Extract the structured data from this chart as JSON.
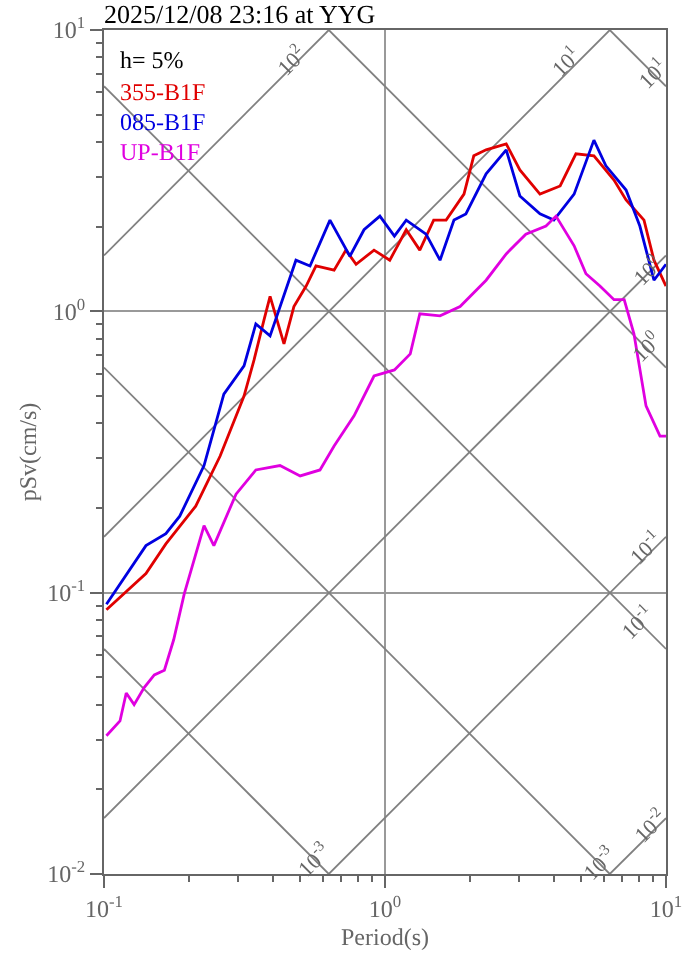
{
  "chart_data": {
    "type": "line",
    "title": "2025/12/08 23:16 at YYG",
    "xlabel": "Period(s)",
    "ylabel": "pSv(cm/s)",
    "log": "xy",
    "grid": true,
    "legend": "top left",
    "xlim": [
      0.1,
      10
    ],
    "ylim": [
      0.01,
      10
    ],
    "xticks": [
      {
        "value": 0.1,
        "label": "10$^{-1}$"
      },
      {
        "value": 1,
        "label": "10$^{0}$"
      },
      {
        "value": 10,
        "label": "10$^{1}$"
      }
    ],
    "yticks": [
      {
        "value": 0.01,
        "label": "10$^{-2}$"
      },
      {
        "value": 0.1,
        "label": "10$^{-1}$"
      },
      {
        "value": 1,
        "label": "10$^{0}$"
      },
      {
        "value": 10,
        "label": "10$^{1}$"
      }
    ],
    "annotations": [
      "h= 5%",
      {
        "text": "10$^{2}$",
        "x": 0.46,
        "y": 7.8
      },
      {
        "text": "10$^{1}$",
        "x": 4.4,
        "y": 7.8
      },
      {
        "text": "10$^{1}$",
        "x": 9.0,
        "y": 7.0
      },
      {
        "text": "10$^{0}$",
        "x": 8.5,
        "y": 1.4
      },
      {
        "text": "10$^{0}$",
        "x": 8.5,
        "y": 0.743
      },
      {
        "text": "10$^{-1}$",
        "x": 8.5,
        "y": 0.145
      },
      {
        "text": "10$^{-1}$",
        "x": 8.0,
        "y": 0.0788
      },
      {
        "text": "10$^{-3}$",
        "x": 0.56,
        "y": 0.0113
      },
      {
        "text": "10$^{-3}$",
        "x": 5.8,
        "y": 0.0109
      },
      {
        "text": "10$^{-2}$",
        "x": 8.8,
        "y": 0.015
      }
    ],
    "series": [
      {
        "color": "#808080",
        "x": [
          0.1,
          0.631
        ],
        "values": [
          0.0631,
          0.01
        ]
      },
      {
        "color": "#808080",
        "x": [
          0.1,
          6.31
        ],
        "values": [
          0.631,
          0.01
        ]
      },
      {
        "color": "#808080",
        "x": [
          0.1,
          10
        ],
        "values": [
          6.31,
          0.0631
        ]
      },
      {
        "color": "#808080",
        "x": [
          0.631,
          10
        ],
        "values": [
          10,
          0.631
        ]
      },
      {
        "color": "#808080",
        "x": [
          6.31,
          10
        ],
        "values": [
          10,
          6.31
        ]
      },
      {
        "color": "#808080",
        "x": [
          6.31,
          10
        ],
        "values": [
          0.01,
          0.0158
        ]
      },
      {
        "color": "#808080",
        "x": [
          0.631,
          10
        ],
        "values": [
          0.01,
          0.158
        ]
      },
      {
        "color": "#808080",
        "x": [
          0.1,
          10
        ],
        "values": [
          0.0158,
          1.58
        ]
      },
      {
        "color": "#808080",
        "x": [
          0.1,
          6.31
        ],
        "values": [
          0.158,
          10
        ]
      },
      {
        "color": "#808080",
        "x": [
          0.1,
          0.631
        ],
        "values": [
          1.58,
          10
        ]
      },
      {
        "name": "355-B1F",
        "color": "#e00000",
        "x": [
          0.102,
          0.141,
          0.166,
          0.212,
          0.259,
          0.315,
          0.342,
          0.371,
          0.39,
          0.437,
          0.474,
          0.524,
          0.568,
          0.659,
          0.726,
          0.789,
          0.914,
          1.04,
          1.19,
          1.33,
          1.49,
          1.65,
          1.91,
          2.07,
          2.29,
          2.7,
          3.02,
          3.56,
          4.2,
          4.78,
          5.54,
          6.53,
          7.21,
          8.35,
          9.06,
          10
        ],
        "values": [
          0.087,
          0.117,
          0.149,
          0.203,
          0.306,
          0.5,
          0.672,
          0.932,
          1.13,
          0.766,
          1.04,
          1.23,
          1.45,
          1.4,
          1.65,
          1.47,
          1.65,
          1.52,
          1.95,
          1.65,
          2.11,
          2.11,
          2.61,
          3.57,
          3.75,
          3.94,
          3.18,
          2.61,
          2.79,
          3.63,
          3.57,
          2.93,
          2.49,
          2.11,
          1.52,
          1.23
        ]
      },
      {
        "name": "085-B1F",
        "color": "#0000e0",
        "x": [
          0.102,
          0.141,
          0.166,
          0.186,
          0.227,
          0.267,
          0.315,
          0.347,
          0.39,
          0.482,
          0.541,
          0.637,
          0.75,
          0.842,
          0.959,
          1.08,
          1.19,
          1.4,
          1.57,
          1.76,
          1.94,
          2.29,
          2.7,
          3.02,
          3.56,
          3.99,
          4.71,
          5.54,
          6.11,
          7.21,
          8.07,
          9.06,
          10
        ],
        "values": [
          0.091,
          0.147,
          0.162,
          0.187,
          0.283,
          0.508,
          0.64,
          0.902,
          0.818,
          1.52,
          1.45,
          2.11,
          1.57,
          1.95,
          2.18,
          1.85,
          2.11,
          1.88,
          1.52,
          2.11,
          2.22,
          3.08,
          3.75,
          2.57,
          2.22,
          2.11,
          2.61,
          4.06,
          3.29,
          2.7,
          2.01,
          1.29,
          1.47
        ]
      },
      {
        "name": "UP-B1F",
        "color": "#e000e0",
        "x": [
          0.102,
          0.114,
          0.12,
          0.128,
          0.139,
          0.151,
          0.164,
          0.177,
          0.193,
          0.227,
          0.246,
          0.295,
          0.347,
          0.423,
          0.499,
          0.587,
          0.659,
          0.776,
          0.914,
          1.08,
          1.23,
          1.33,
          1.57,
          1.85,
          2.29,
          2.7,
          3.17,
          3.74,
          4.06,
          4.71,
          5.19,
          5.82,
          6.53,
          7.1,
          7.69,
          8.49,
          9.52,
          10
        ],
        "values": [
          0.031,
          0.035,
          0.044,
          0.04,
          0.046,
          0.051,
          0.053,
          0.068,
          0.099,
          0.173,
          0.147,
          0.224,
          0.273,
          0.283,
          0.26,
          0.273,
          0.332,
          0.425,
          0.589,
          0.619,
          0.706,
          0.98,
          0.964,
          1.04,
          1.29,
          1.6,
          1.88,
          2.01,
          2.18,
          1.71,
          1.36,
          1.23,
          1.1,
          1.1,
          0.832,
          0.461,
          0.36,
          0.36
        ]
      }
    ]
  }
}
